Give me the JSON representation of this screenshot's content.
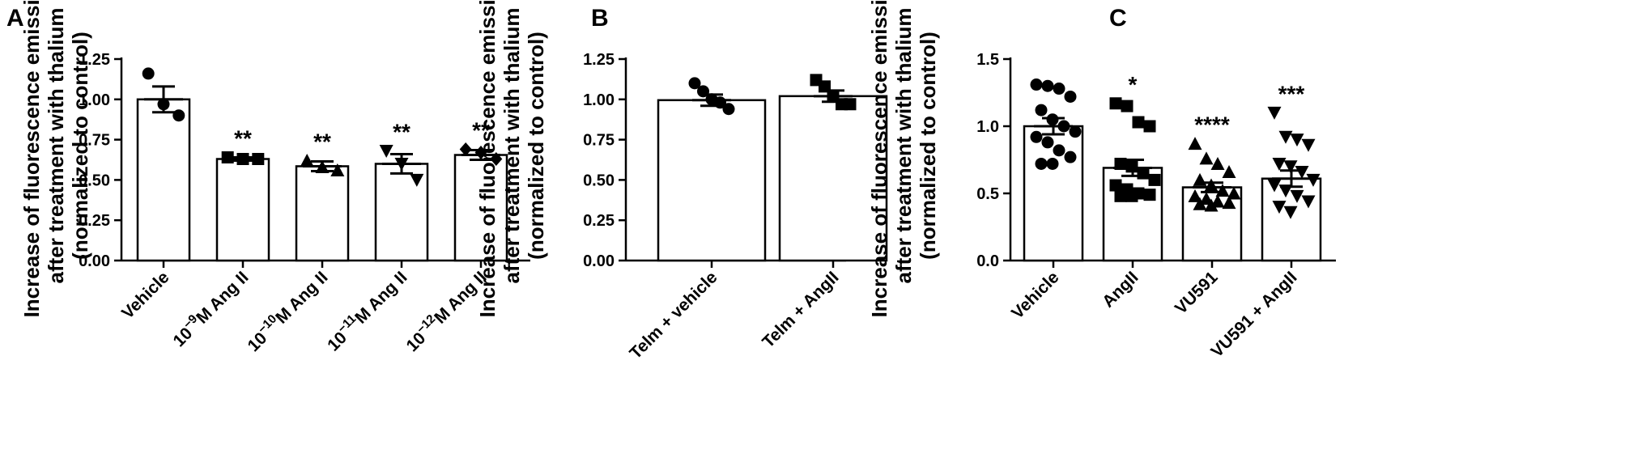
{
  "chart_data": [
    {
      "panel": "A",
      "type": "bar",
      "ylabel": [
        "Increase of fluorescence emission",
        "after treatment with thalium",
        "(normalized to control)"
      ],
      "ylim": [
        0,
        1.25
      ],
      "yticks": [
        0.0,
        0.25,
        0.5,
        0.75,
        1.0,
        1.25
      ],
      "ytick_labels": [
        "0.00",
        "0.25",
        "0.50",
        "0.75",
        "1.00",
        "1.25"
      ],
      "categories": [
        {
          "label": "Vehicle"
        },
        {
          "base": "10",
          "sup": "−9",
          "rest": "M Ang II"
        },
        {
          "base": "10",
          "sup": "−10",
          "rest": "M Ang II"
        },
        {
          "base": "10",
          "sup": "−11",
          "rest": "M Ang II"
        },
        {
          "base": "10",
          "sup": "−12",
          "rest": "M Ang II"
        }
      ],
      "values": [
        1.0,
        0.63,
        0.585,
        0.6,
        0.655
      ],
      "sem": [
        0.08,
        0.01,
        0.03,
        0.06,
        0.03
      ],
      "markers": [
        "circle",
        "square",
        "triangle",
        "triangle-down",
        "diamond"
      ],
      "points": [
        [
          1.16,
          0.97,
          0.9
        ],
        [
          0.64,
          0.63,
          0.63
        ],
        [
          0.62,
          0.58,
          0.56
        ],
        [
          0.68,
          0.6,
          0.5
        ],
        [
          0.69,
          0.67,
          0.63
        ]
      ],
      "significance": [
        "",
        "**",
        "**",
        "**",
        "**"
      ]
    },
    {
      "panel": "B",
      "type": "bar",
      "ylabel": [
        "Increase of fluorescence emission",
        "after treatment with thalium",
        "(normalized to control)"
      ],
      "ylim": [
        0,
        1.25
      ],
      "yticks": [
        0.0,
        0.25,
        0.5,
        0.75,
        1.0,
        1.25
      ],
      "ytick_labels": [
        "0.00",
        "0.25",
        "0.50",
        "0.75",
        "1.00",
        "1.25"
      ],
      "categories": [
        {
          "label": "Telm + vehicle"
        },
        {
          "label": "Telm + AngII"
        }
      ],
      "values": [
        0.995,
        1.02
      ],
      "sem": [
        0.035,
        0.035
      ],
      "markers": [
        "circle",
        "square"
      ],
      "points": [
        [
          1.1,
          1.05,
          1.0,
          0.98,
          0.94
        ],
        [
          1.12,
          1.08,
          1.02,
          0.97,
          0.97
        ]
      ],
      "significance": [
        "",
        ""
      ]
    },
    {
      "panel": "C",
      "type": "bar",
      "ylabel": [
        "Increase of fluorescence emission",
        "after treatment with thalium",
        "(normalized to control)"
      ],
      "ylim": [
        0,
        1.5
      ],
      "yticks": [
        0.0,
        0.5,
        1.0,
        1.5
      ],
      "ytick_labels": [
        "0.0",
        "0.5",
        "1.0",
        "1.5"
      ],
      "categories": [
        {
          "label": "Vehicle"
        },
        {
          "label": "AngII"
        },
        {
          "label": "VU591"
        },
        {
          "label": "VU591 + AngII"
        }
      ],
      "values": [
        1.0,
        0.69,
        0.545,
        0.61
      ],
      "sem": [
        0.06,
        0.06,
        0.035,
        0.06
      ],
      "markers": [
        "circle",
        "square",
        "triangle",
        "triangle-down"
      ],
      "points": [
        [
          1.31,
          1.3,
          1.28,
          1.22,
          1.12,
          1.05,
          1.0,
          0.96,
          0.92,
          0.88,
          0.82,
          0.77,
          0.72,
          0.72
        ],
        [
          1.17,
          1.15,
          1.03,
          1.0,
          0.72,
          0.7,
          0.65,
          0.6,
          0.56,
          0.53,
          0.5,
          0.49,
          0.48,
          0.48
        ],
        [
          0.87,
          0.76,
          0.72,
          0.66,
          0.6,
          0.56,
          0.52,
          0.5,
          0.48,
          0.46,
          0.44,
          0.43,
          0.42,
          0.41
        ],
        [
          1.1,
          0.92,
          0.9,
          0.86,
          0.72,
          0.7,
          0.66,
          0.6,
          0.56,
          0.52,
          0.48,
          0.44,
          0.4,
          0.36
        ]
      ],
      "significance": [
        "",
        "*",
        "****",
        "***"
      ]
    }
  ]
}
